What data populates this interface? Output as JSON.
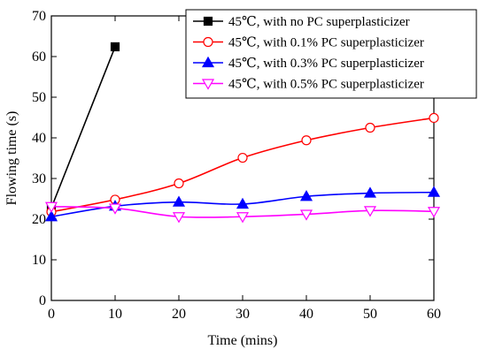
{
  "chart_data": {
    "type": "line",
    "title": "",
    "xlabel": "Time (mins)",
    "ylabel": "Flowing time (s)",
    "xlim": [
      0,
      60
    ],
    "ylim": [
      0,
      70
    ],
    "x_ticks": [
      0,
      10,
      20,
      30,
      40,
      50,
      60
    ],
    "y_ticks": [
      0,
      10,
      20,
      30,
      40,
      50,
      60,
      70
    ],
    "grid": false,
    "legend_position": "top-right",
    "series": [
      {
        "name": "45℃, with no PC superplasticizer",
        "color": "#000000",
        "marker": "square-filled",
        "x": [
          0,
          10
        ],
        "y": [
          22.8,
          62.4
        ]
      },
      {
        "name": "45℃, with 0.1% PC superplasticizer",
        "color": "#ff0000",
        "marker": "circle-open",
        "x": [
          0,
          10,
          20,
          30,
          40,
          50,
          60
        ],
        "y": [
          21.8,
          24.8,
          28.8,
          35.1,
          39.4,
          42.5,
          44.9
        ]
      },
      {
        "name": "45℃, with 0.3% PC superplasticizer",
        "color": "#0000ff",
        "marker": "triangle-up-filled",
        "x": [
          0,
          10,
          20,
          30,
          40,
          50,
          60
        ],
        "y": [
          20.6,
          23.2,
          24.2,
          23.7,
          25.6,
          26.4,
          26.6
        ]
      },
      {
        "name": "45℃, with 0.5% PC superplasticizer",
        "color": "#ff00ff",
        "marker": "triangle-down-open",
        "x": [
          0,
          10,
          20,
          30,
          40,
          50,
          60
        ],
        "y": [
          23.1,
          22.7,
          20.6,
          20.6,
          21.2,
          22.1,
          21.9
        ]
      }
    ]
  }
}
